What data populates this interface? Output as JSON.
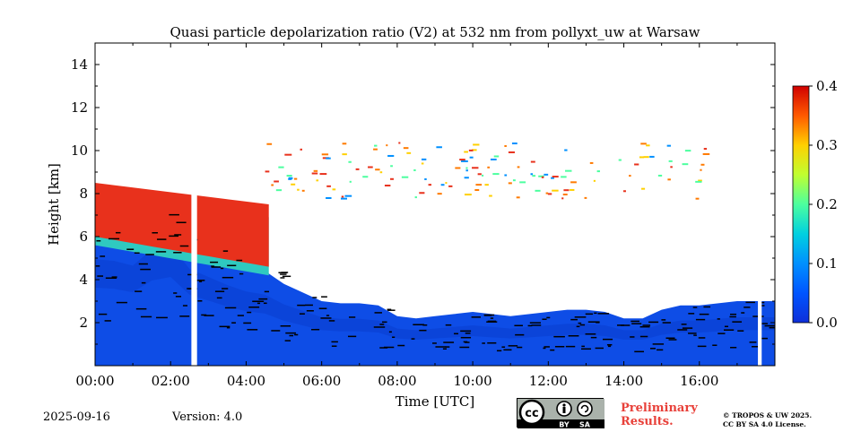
{
  "chart_data": {
    "type": "heatmap",
    "title": "Quasi particle depolarization ratio (V2) at 532 nm from pollyxt_uw at Warsaw",
    "xlabel": "Time [UTC]",
    "ylabel": "Height [km]",
    "x_ticks": [
      "00:00",
      "02:00",
      "04:00",
      "06:00",
      "08:00",
      "10:00",
      "12:00",
      "14:00",
      "16:00"
    ],
    "x_tick_hours": [
      0,
      2,
      4,
      6,
      8,
      10,
      12,
      14,
      16
    ],
    "xlim_hours": [
      0,
      18
    ],
    "y_ticks": [
      "2",
      "4",
      "6",
      "8",
      "10",
      "12",
      "14"
    ],
    "y_tick_values": [
      2,
      4,
      6,
      8,
      10,
      12,
      14
    ],
    "ylim_km": [
      0,
      15
    ],
    "colorbar": {
      "min": 0.0,
      "max": 0.4,
      "ticks": [
        "0.0",
        "0.1",
        "0.2",
        "0.3",
        "0.4"
      ],
      "tick_values": [
        0.0,
        0.1,
        0.2,
        0.3,
        0.4
      ],
      "colormap": "jet"
    },
    "data_gaps_hours": [
      [
        2.55,
        2.7
      ],
      [
        17.55,
        17.65
      ]
    ],
    "lowest_signal_top_km": [
      [
        0.0,
        6.6
      ],
      [
        0.5,
        6.5
      ],
      [
        1.0,
        6.2
      ],
      [
        1.5,
        7.2
      ],
      [
        2.0,
        7.5
      ],
      [
        2.5,
        6.0
      ],
      [
        3.0,
        5.5
      ],
      [
        3.5,
        5.0
      ],
      [
        4.0,
        4.6
      ],
      [
        4.5,
        4.4
      ],
      [
        5.0,
        3.8
      ],
      [
        5.5,
        3.4
      ],
      [
        6.0,
        3.0
      ],
      [
        6.5,
        2.9
      ],
      [
        7.0,
        2.9
      ],
      [
        7.5,
        2.8
      ],
      [
        8.0,
        2.3
      ],
      [
        8.5,
        2.2
      ],
      [
        9.0,
        2.3
      ],
      [
        9.5,
        2.4
      ],
      [
        10.0,
        2.5
      ],
      [
        10.5,
        2.4
      ],
      [
        11.0,
        2.3
      ],
      [
        11.5,
        2.4
      ],
      [
        12.0,
        2.5
      ],
      [
        12.5,
        2.6
      ],
      [
        13.0,
        2.6
      ],
      [
        13.5,
        2.5
      ],
      [
        14.0,
        2.2
      ],
      [
        14.5,
        2.2
      ],
      [
        15.0,
        2.6
      ],
      [
        15.5,
        2.8
      ],
      [
        16.0,
        2.8
      ],
      [
        16.5,
        2.9
      ],
      [
        17.0,
        3.0
      ],
      [
        17.5,
        3.0
      ],
      [
        18.0,
        3.0
      ]
    ],
    "high_depol_layer": {
      "description_values": "depolarization ratio about 0.3-0.4 in aerosol layer",
      "hours": [
        0.0,
        4.6
      ],
      "base_km": [
        6.0,
        4.6
      ],
      "top_km": [
        8.5,
        7.5
      ]
    }
  },
  "footer": {
    "date": "2025-09-16",
    "version": "Version: 4.0",
    "license_badge": "cc BY SA",
    "license_by": "BY",
    "license_sa": "SA",
    "preliminary_line1": "Preliminary",
    "preliminary_line2": "Results.",
    "copyright_line1": "© TROPOS & UW 2025.",
    "copyright_line2": "CC BY SA 4.0 License."
  }
}
